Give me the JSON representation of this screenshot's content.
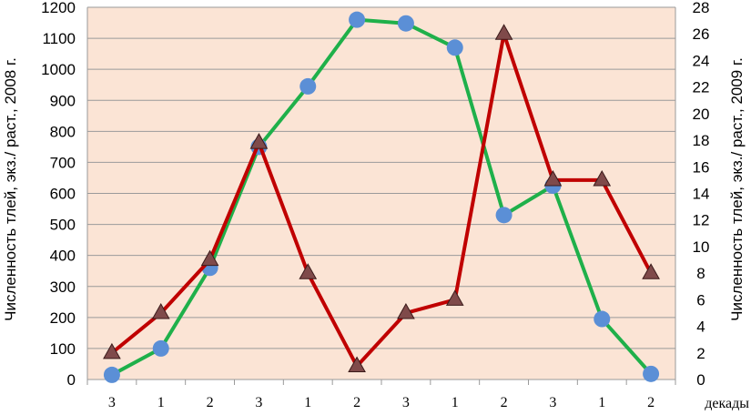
{
  "chart_data": {
    "type": "line",
    "categories": [
      "3",
      "1",
      "2",
      "3",
      "1",
      "2",
      "3",
      "1",
      "2",
      "3",
      "1",
      "2"
    ],
    "xlabel": "декады",
    "ylabel_left": "Численность тлей, экз./ раст., 2008 г.",
    "ylabel_right": "Численность тлей, экз./ раст., 2009 г.",
    "ylim_left": [
      0,
      1200
    ],
    "yticks_left": [
      0,
      100,
      200,
      300,
      400,
      500,
      600,
      700,
      800,
      900,
      1000,
      1100,
      1200
    ],
    "ylim_right": [
      0,
      28
    ],
    "yticks_right": [
      0,
      2,
      4,
      6,
      8,
      10,
      12,
      14,
      16,
      18,
      20,
      22,
      24,
      26,
      28
    ],
    "grid": "horizontal",
    "plot_background": "#fbe4d5",
    "series": [
      {
        "axis": "left",
        "color": "#1fb04a",
        "marker": "circle",
        "marker_color": "#5b8fd6",
        "values": [
          15,
          100,
          360,
          750,
          945,
          1160,
          1148,
          1070,
          530,
          625,
          195,
          18
        ]
      },
      {
        "axis": "right",
        "color": "#c00000",
        "marker": "triangle",
        "marker_color": "#7f4a4a",
        "values": [
          2,
          5,
          9,
          17.8,
          8,
          1,
          5,
          6,
          26,
          15,
          15,
          8
        ]
      }
    ]
  }
}
